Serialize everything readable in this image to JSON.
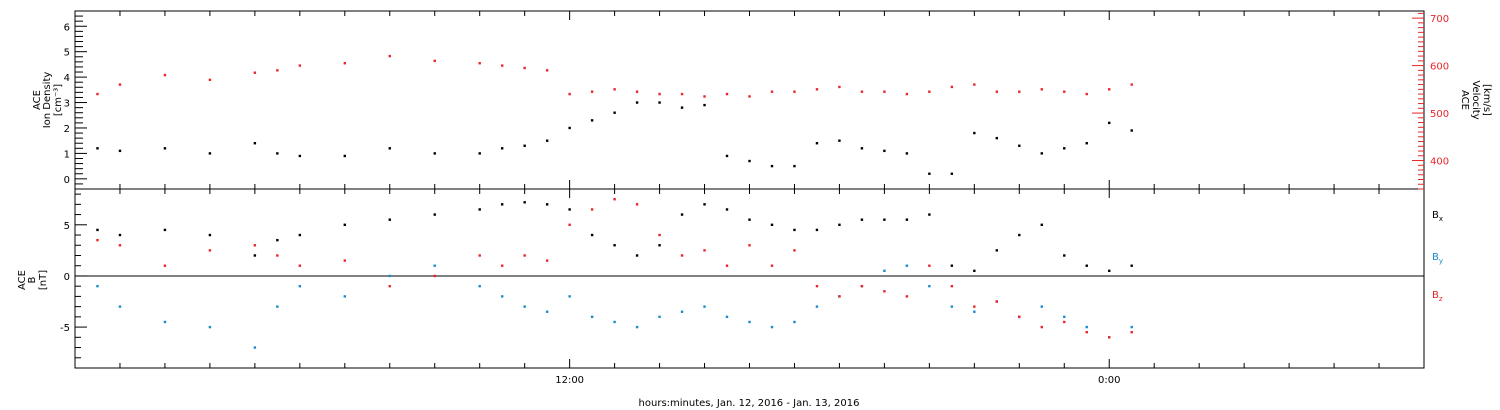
{
  "chart_data": [
    {
      "type": "scatter",
      "xlabel": "hours:minutes, Jan. 12, 2016 - Jan. 13, 2016",
      "x_unit": "hours from 00:00 Jan. 12, 2016",
      "xlim": [
        1.0,
        31.0
      ],
      "x_ticks": [
        {
          "x": 12,
          "label": "12:00"
        },
        {
          "x": 24,
          "label": "0:00"
        }
      ],
      "ylabel_left": [
        "ACE",
        "Ion Density",
        "[cm⁻³]"
      ],
      "ylim_left": [
        -0.4,
        6.6
      ],
      "y_ticks_left": [
        "0",
        "1",
        "2",
        "3",
        "4",
        "5",
        "6"
      ],
      "ylabel_right": [
        "ACE",
        "Velocity",
        "[km/s]"
      ],
      "ylim_right": [
        340,
        715
      ],
      "y_ticks_right": [
        "400",
        "500",
        "600",
        "700"
      ],
      "grid": false,
      "colors": {
        "density": "#000000",
        "velocity": "#e8262a"
      },
      "series": [
        {
          "color": "#000000",
          "axis": "left",
          "x": [
            1.5,
            2.0,
            3.0,
            4.0,
            5.0,
            5.5,
            6.0,
            7.0,
            8.0,
            9.0,
            10.0,
            10.5,
            11.0,
            11.5,
            12.0,
            12.5,
            13.0,
            13.5,
            14.0,
            14.5,
            15.0,
            15.5,
            16.0,
            16.5,
            17.0,
            17.5,
            18.0,
            18.5,
            19.0,
            19.5,
            20.0,
            20.5,
            21.0,
            21.5,
            22.0,
            22.5,
            23.0,
            23.5,
            24.0,
            24.5
          ],
          "values": [
            1.2,
            1.1,
            1.2,
            1.0,
            1.4,
            1.0,
            0.9,
            0.9,
            1.2,
            1.0,
            1.0,
            1.2,
            1.3,
            1.5,
            2.0,
            2.3,
            2.6,
            3.0,
            3.0,
            2.8,
            2.9,
            0.9,
            0.7,
            0.5,
            0.5,
            1.4,
            1.5,
            1.2,
            1.1,
            1.0,
            0.2,
            0.2,
            1.8,
            1.6,
            1.3,
            1.0,
            1.2,
            1.4,
            2.2,
            1.9
          ]
        },
        {
          "color": "#e8262a",
          "axis": "right",
          "x": [
            1.5,
            2.0,
            3.0,
            4.0,
            5.0,
            5.5,
            6.0,
            7.0,
            8.0,
            9.0,
            10.0,
            10.5,
            11.0,
            11.5,
            12.0,
            12.5,
            13.0,
            13.5,
            14.0,
            14.5,
            15.0,
            15.5,
            16.0,
            16.5,
            17.0,
            17.5,
            18.0,
            18.5,
            19.0,
            19.5,
            20.0,
            20.5,
            21.0,
            21.5,
            22.0,
            22.5,
            23.0,
            23.5,
            24.0,
            24.5
          ],
          "values": [
            540,
            560,
            580,
            570,
            585,
            590,
            600,
            605,
            620,
            610,
            605,
            600,
            595,
            590,
            540,
            545,
            550,
            545,
            540,
            540,
            535,
            540,
            535,
            545,
            545,
            550,
            555,
            545,
            545,
            540,
            545,
            555,
            560,
            545,
            545,
            550,
            545,
            540,
            550,
            560
          ]
        }
      ]
    },
    {
      "type": "scatter",
      "xlabel": "hours:minutes, Jan. 12, 2016 - Jan. 13, 2016",
      "x_unit": "hours from 00:00 Jan. 12, 2016",
      "xlim": [
        1.0,
        31.0
      ],
      "ylabel": [
        "ACE",
        "B",
        "[nT]"
      ],
      "ylim": [
        -9.0,
        8.5
      ],
      "y_ticks": [
        "-5",
        "0",
        "5"
      ],
      "zero_line": true,
      "grid": false,
      "legend_position": "right",
      "colors": {
        "Bx": "#000000",
        "By": "#1a8ccc",
        "Bz": "#e8262a"
      },
      "series": [
        {
          "name": "Bx",
          "color": "#000000",
          "x": [
            1.5,
            2.0,
            3.0,
            4.0,
            5.0,
            5.5,
            6.0,
            7.0,
            8.0,
            9.0,
            10.0,
            10.5,
            11.0,
            11.5,
            12.0,
            12.5,
            13.0,
            13.5,
            14.0,
            14.5,
            15.0,
            15.5,
            16.0,
            16.5,
            17.0,
            17.5,
            18.0,
            18.5,
            19.0,
            19.5,
            20.0,
            20.5,
            21.0,
            21.5,
            22.0,
            22.5,
            23.0,
            23.5,
            24.0,
            24.5
          ],
          "values": [
            4.5,
            4.0,
            4.5,
            4.0,
            2.0,
            3.5,
            4.0,
            5.0,
            5.5,
            6.0,
            6.5,
            7.0,
            7.2,
            7.0,
            6.5,
            4.0,
            3.0,
            2.0,
            3.0,
            6.0,
            7.0,
            6.5,
            5.5,
            5.0,
            4.5,
            4.5,
            5.0,
            5.5,
            5.5,
            5.5,
            6.0,
            1.0,
            0.5,
            2.5,
            4.0,
            5.0,
            2.0,
            1.0,
            0.5,
            1.0
          ]
        },
        {
          "name": "By",
          "color": "#1a8ccc",
          "x": [
            1.5,
            2.0,
            3.0,
            4.0,
            5.0,
            5.5,
            6.0,
            7.0,
            8.0,
            9.0,
            10.0,
            10.5,
            11.0,
            11.5,
            12.0,
            12.5,
            13.0,
            13.5,
            14.0,
            14.5,
            15.0,
            15.5,
            16.0,
            16.5,
            17.0,
            17.5,
            18.0,
            18.5,
            19.0,
            19.5,
            20.0,
            20.5,
            21.0,
            21.5,
            22.0,
            22.5,
            23.0,
            23.5,
            24.0,
            24.5
          ],
          "values": [
            -1.0,
            -3.0,
            -4.5,
            -5.0,
            -7.0,
            -3.0,
            -1.0,
            -2.0,
            0.0,
            1.0,
            -1.0,
            -2.0,
            -3.0,
            -3.5,
            -2.0,
            -4.0,
            -4.5,
            -5.0,
            -4.0,
            -3.5,
            -3.0,
            -4.0,
            -4.5,
            -5.0,
            -4.5,
            -3.0,
            -2.0,
            -1.0,
            0.5,
            1.0,
            -1.0,
            -3.0,
            -3.5,
            -2.5,
            -4.0,
            -3.0,
            -4.0,
            -5.0,
            -6.0,
            -5.0
          ]
        },
        {
          "name": "Bz",
          "color": "#e8262a",
          "x": [
            1.5,
            2.0,
            3.0,
            4.0,
            5.0,
            5.5,
            6.0,
            7.0,
            8.0,
            9.0,
            10.0,
            10.5,
            11.0,
            11.5,
            12.0,
            12.5,
            13.0,
            13.5,
            14.0,
            14.5,
            15.0,
            15.5,
            16.0,
            16.5,
            17.0,
            17.5,
            18.0,
            18.5,
            19.0,
            19.5,
            20.0,
            20.5,
            21.0,
            21.5,
            22.0,
            22.5,
            23.0,
            23.5,
            24.0,
            24.5
          ],
          "values": [
            3.5,
            3.0,
            1.0,
            2.5,
            3.0,
            2.0,
            1.0,
            1.5,
            -1.0,
            0.0,
            2.0,
            1.0,
            2.0,
            1.5,
            5.0,
            6.5,
            7.5,
            7.0,
            4.0,
            2.0,
            2.5,
            1.0,
            3.0,
            1.0,
            2.5,
            -1.0,
            -2.0,
            -1.0,
            -1.5,
            -2.0,
            1.0,
            -1.0,
            -3.0,
            -2.5,
            -4.0,
            -5.0,
            -4.5,
            -5.5,
            -6.0,
            -5.5
          ]
        }
      ]
    }
  ]
}
